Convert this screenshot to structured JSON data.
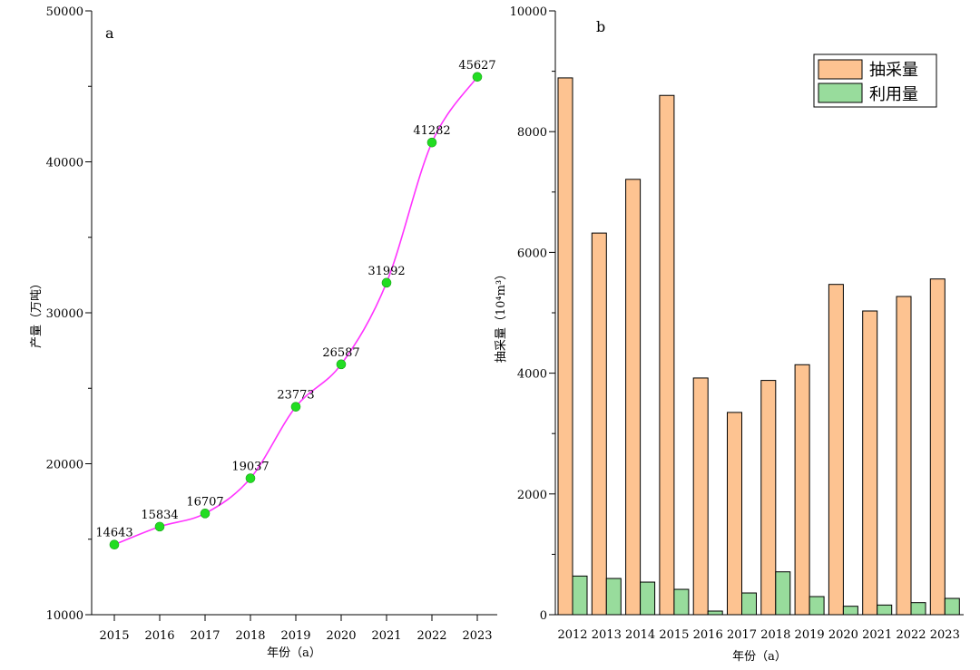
{
  "chart_data": [
    {
      "type": "line",
      "panel_label": "a",
      "ylabel": "产量（万吨）",
      "xlabel": "年份（a）",
      "x": [
        "2015",
        "2016",
        "2017",
        "2018",
        "2019",
        "2020",
        "2021",
        "2022",
        "2023"
      ],
      "series": [
        {
          "values": [
            14643,
            15834,
            16707,
            19037,
            23773,
            26587,
            31992,
            41282,
            45627
          ]
        }
      ],
      "data_labels": [
        "14643",
        "15834",
        "16707",
        "19037",
        "23773",
        "26587",
        "31992",
        "41282",
        "45627"
      ],
      "ylim": [
        10000,
        50000
      ],
      "yticks": [
        "10000",
        "20000",
        "30000",
        "40000",
        "50000"
      ],
      "line_color": "#ff33ff",
      "marker_color": "#22dd22",
      "grid": false
    },
    {
      "type": "bar",
      "panel_label": "b",
      "ylabel": "抽采量（10⁴m³）",
      "xlabel": "年份（a）",
      "categories": [
        "2012",
        "2013",
        "2014",
        "2015",
        "2016",
        "2017",
        "2018",
        "2019",
        "2020",
        "2021",
        "2022",
        "2023"
      ],
      "series": [
        {
          "name": "抽采量",
          "color": "#fdc391",
          "values": [
            8890,
            6320,
            7210,
            8600,
            3920,
            3350,
            3880,
            4140,
            5470,
            5030,
            5270,
            5560
          ]
        },
        {
          "name": "利用量",
          "color": "#98dc9c",
          "values": [
            640,
            600,
            540,
            420,
            60,
            360,
            710,
            300,
            140,
            160,
            200,
            270
          ]
        }
      ],
      "ylim": [
        0,
        10000
      ],
      "yticks": [
        "0",
        "2000",
        "4000",
        "6000",
        "8000",
        "10000"
      ],
      "legend_position": "top-right",
      "grid": false
    }
  ]
}
